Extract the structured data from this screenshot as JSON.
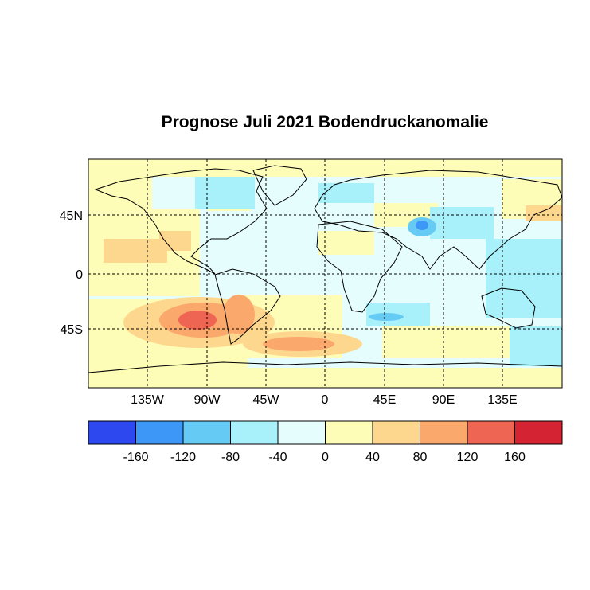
{
  "title": "Prognose Juli 2021 Bodendruckanomalie",
  "map": {
    "lat_labels": [
      "45N",
      "0",
      "45S"
    ],
    "lon_labels": [
      "135W",
      "90W",
      "45W",
      "0",
      "45E",
      "90E",
      "135E"
    ],
    "gridlines": "dashed every 45°",
    "fill_color": "#e6fdfd"
  },
  "legend": {
    "colors": [
      "#2d48ef",
      "#3d97f6",
      "#66cbf4",
      "#a8f1fa",
      "#e6fdfd",
      "#fefdb8",
      "#fdd78d",
      "#fba86d",
      "#ef6553",
      "#d42433"
    ],
    "tick_labels": [
      "-160",
      "-120",
      "-80",
      "-40",
      "0",
      "40",
      "80",
      "120",
      "160"
    ]
  },
  "anomaly_regions": [
    {
      "name": "southeast-pacific-high",
      "level": "+120"
    },
    {
      "name": "south-atlantic-high",
      "level": "+120"
    },
    {
      "name": "central-asia-low",
      "level": "-120"
    },
    {
      "name": "south-indian-low",
      "level": "-80"
    }
  ]
}
